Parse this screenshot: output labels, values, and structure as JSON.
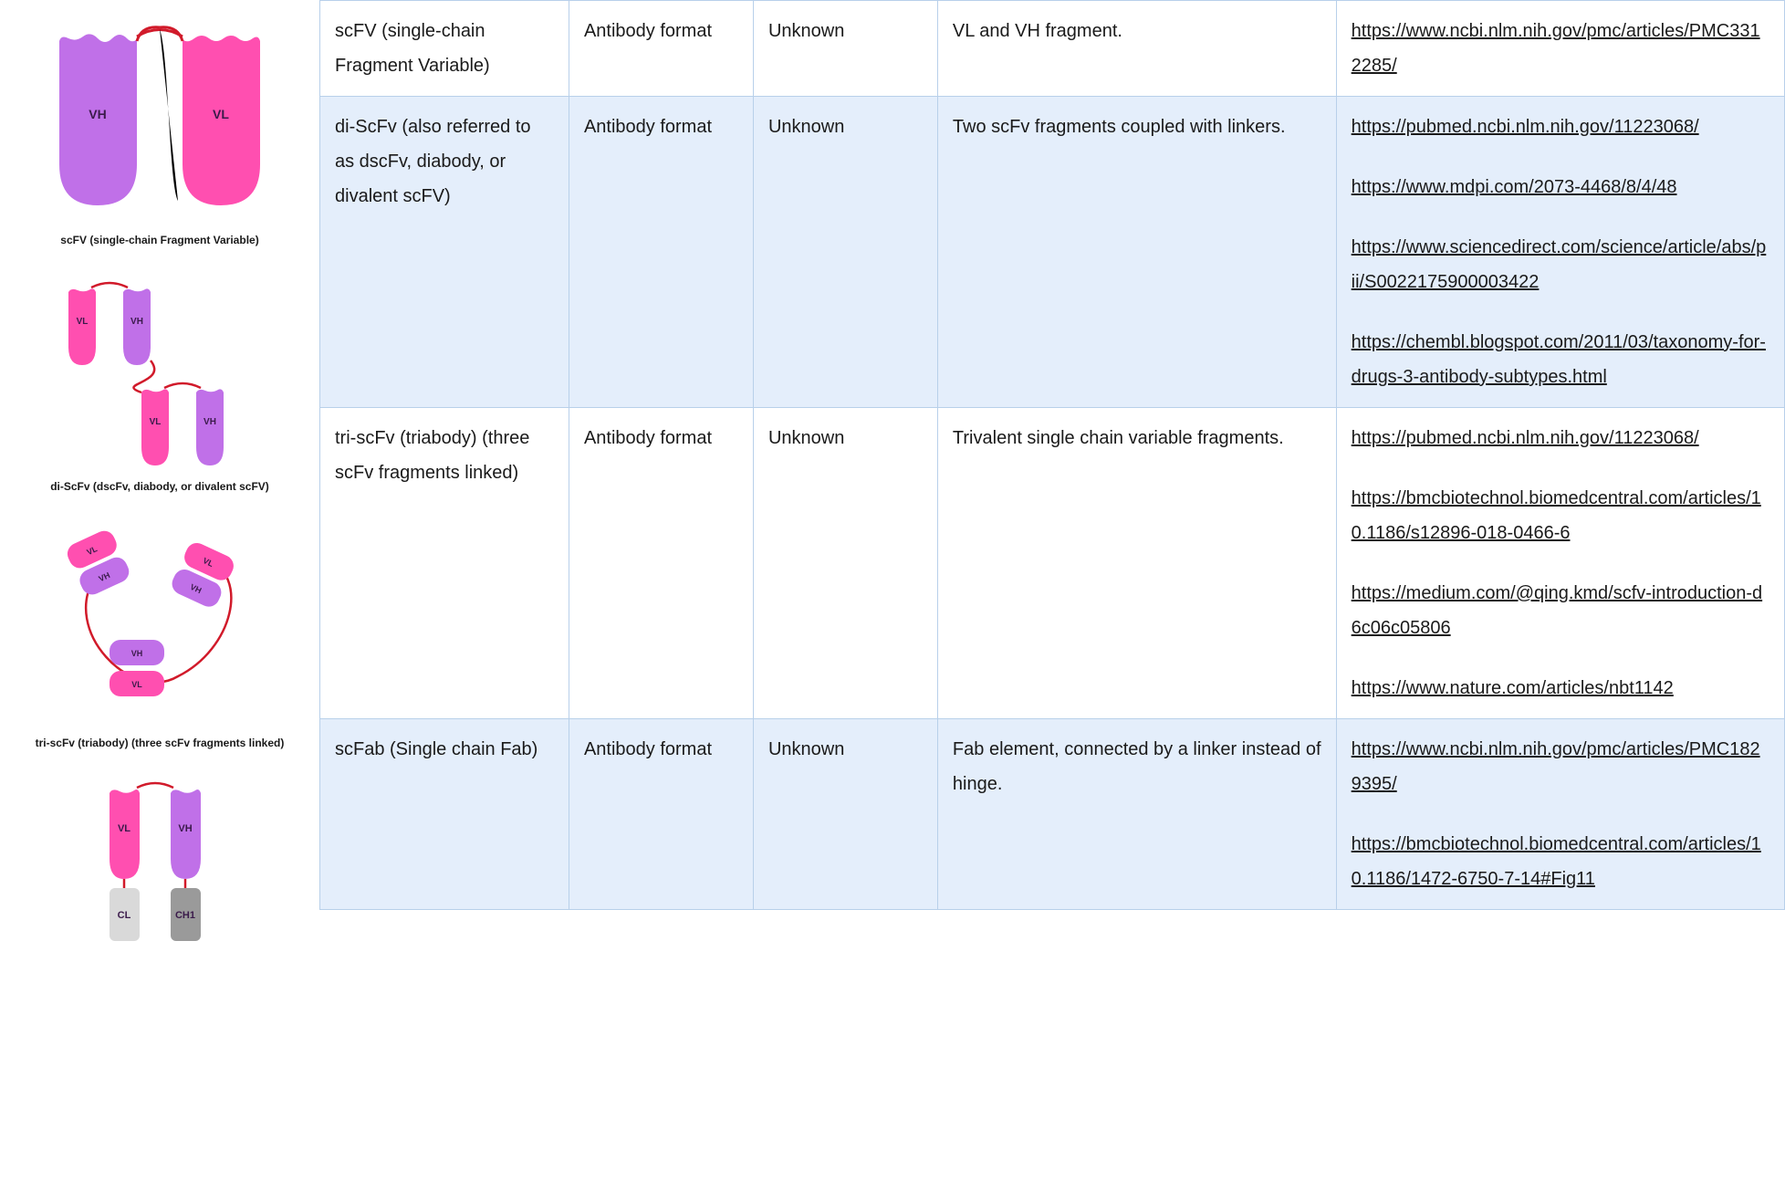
{
  "colors": {
    "vh": "#c070e8",
    "vl": "#ff4fb0",
    "cl": "#d9d9d9",
    "ch1": "#9a9a9a",
    "linker": "#d11a2a",
    "label": "#3a1a4a",
    "table_border": "#b8d0ea",
    "row_even_bg": "#ffffff",
    "row_odd_bg": "#e4eefb"
  },
  "figures": [
    {
      "caption": "scFV (single-chain Fragment Variable)"
    },
    {
      "caption": "di-ScFv (dscFv, diabody, or divalent scFV)"
    },
    {
      "caption": "tri-scFv (triabody) (three scFv fragments linked)"
    },
    {
      "caption": ""
    }
  ],
  "domain_labels": {
    "vh": "VH",
    "vl": "VL",
    "cl": "CL",
    "ch1": "CH1"
  },
  "table": {
    "columns": [
      "name",
      "type",
      "status",
      "description",
      "references"
    ],
    "rows": [
      {
        "name": "scFV (single-chain Fragment Variable)",
        "type": "Antibody format",
        "status": "Unknown",
        "description": "VL and VH fragment.",
        "links": [
          "https://www.ncbi.nlm.nih.gov/pmc/articles/PMC3312285/"
        ],
        "parity": "even"
      },
      {
        "name": "di-ScFv (also referred to as dscFv, diabody, or divalent scFV)",
        "type": "Antibody format",
        "status": "Unknown",
        "description": "Two scFv fragments coupled with linkers.",
        "links": [
          "https://pubmed.ncbi.nlm.nih.gov/11223068/",
          "https://www.mdpi.com/2073-4468/8/4/48",
          "https://www.sciencedirect.com/science/article/abs/pii/S0022175900003422",
          "https://chembl.blogspot.com/2011/03/taxonomy-for-drugs-3-antibody-subtypes.html"
        ],
        "parity": "odd"
      },
      {
        "name": "tri-scFv (triabody) (three scFv fragments linked)",
        "type": "Antibody format",
        "status": "Unknown",
        "description": "Trivalent single chain variable fragments.",
        "links": [
          "https://pubmed.ncbi.nlm.nih.gov/11223068/",
          "https://bmcbiotechnol.biomedcentral.com/articles/10.1186/s12896-018-0466-6",
          "https://medium.com/@qing.kmd/scfv-introduction-d6c06c05806",
          "https://www.nature.com/articles/nbt1142"
        ],
        "parity": "even"
      },
      {
        "name": "scFab (Single chain Fab)",
        "type": "Antibody format",
        "status": "Unknown",
        "description": "Fab element, connected by a linker instead of hinge.",
        "links": [
          "https://www.ncbi.nlm.nih.gov/pmc/articles/PMC1829395/",
          "https://bmcbiotechnol.biomedcentral.com/articles/10.1186/1472-6750-7-14#Fig11"
        ],
        "parity": "odd"
      }
    ]
  }
}
